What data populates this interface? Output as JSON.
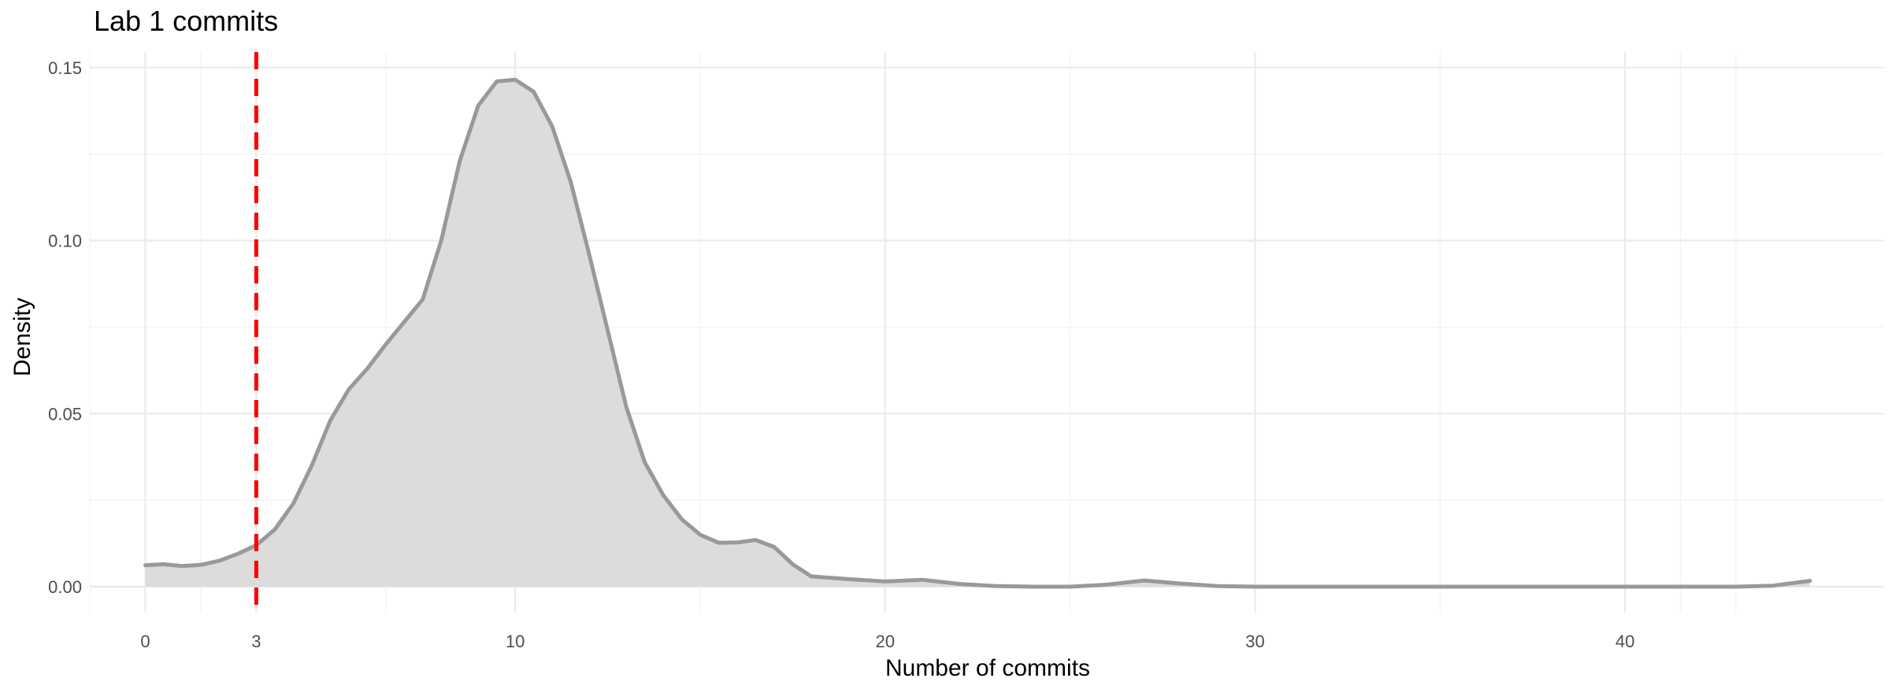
{
  "chart_data": {
    "type": "area",
    "title": "Lab 1 commits",
    "xlabel": "Number of commits",
    "ylabel": "Density",
    "xlim": [
      -1.5,
      47
    ],
    "ylim": [
      -0.0075,
      0.1545
    ],
    "x_ticks": [
      0,
      3,
      10,
      20,
      30,
      40
    ],
    "x_tick_labels": [
      "0",
      "3",
      "10",
      "20",
      "30",
      "40"
    ],
    "y_ticks": [
      0,
      0.05,
      0.1,
      0.15
    ],
    "y_tick_labels": [
      "0.00",
      "0.05",
      "0.10",
      "0.15"
    ],
    "x_minor_grid": [
      -1.5,
      1.5,
      6.5,
      15,
      25,
      35,
      41.5,
      43
    ],
    "y_minor_grid": [
      0.025,
      0.075,
      0.125
    ],
    "grid": true,
    "legend": "none",
    "series": [
      {
        "fill": "#dcdcdc",
        "stroke": "#999999",
        "points": [
          [
            0,
            0.0062
          ],
          [
            0.5,
            0.0065
          ],
          [
            1,
            0.006
          ],
          [
            1.5,
            0.0063
          ],
          [
            2,
            0.0075
          ],
          [
            2.5,
            0.0095
          ],
          [
            3,
            0.012
          ],
          [
            3.5,
            0.0165
          ],
          [
            4,
            0.024
          ],
          [
            4.5,
            0.035
          ],
          [
            5,
            0.048
          ],
          [
            5.5,
            0.057
          ],
          [
            6,
            0.063
          ],
          [
            6.5,
            0.07
          ],
          [
            7,
            0.0765
          ],
          [
            7.5,
            0.083
          ],
          [
            8,
            0.1
          ],
          [
            8.5,
            0.123
          ],
          [
            9,
            0.139
          ],
          [
            9.5,
            0.146
          ],
          [
            10,
            0.1465
          ],
          [
            10.5,
            0.143
          ],
          [
            11,
            0.133
          ],
          [
            11.5,
            0.117
          ],
          [
            12,
            0.096
          ],
          [
            12.5,
            0.074
          ],
          [
            13,
            0.052
          ],
          [
            13.5,
            0.036
          ],
          [
            14,
            0.0265
          ],
          [
            14.5,
            0.0195
          ],
          [
            15,
            0.015
          ],
          [
            15.5,
            0.0127
          ],
          [
            16,
            0.0128
          ],
          [
            16.5,
            0.0135
          ],
          [
            17,
            0.0115
          ],
          [
            17.5,
            0.0065
          ],
          [
            18,
            0.003
          ],
          [
            19,
            0.0022
          ],
          [
            20,
            0.0015
          ],
          [
            21,
            0.002
          ],
          [
            22,
            0.0008
          ],
          [
            23,
            0.0002
          ],
          [
            24,
            0
          ],
          [
            25,
            0
          ],
          [
            26,
            0.0006
          ],
          [
            27,
            0.0018
          ],
          [
            28,
            0.0009
          ],
          [
            29,
            0.0002
          ],
          [
            30,
            0
          ],
          [
            35,
            0
          ],
          [
            40,
            0
          ],
          [
            43,
            0
          ],
          [
            44,
            0.0003
          ],
          [
            45,
            0.0017
          ]
        ]
      }
    ],
    "reference_line": {
      "x": 3,
      "color": "#ff0000",
      "style": "dashed"
    }
  }
}
